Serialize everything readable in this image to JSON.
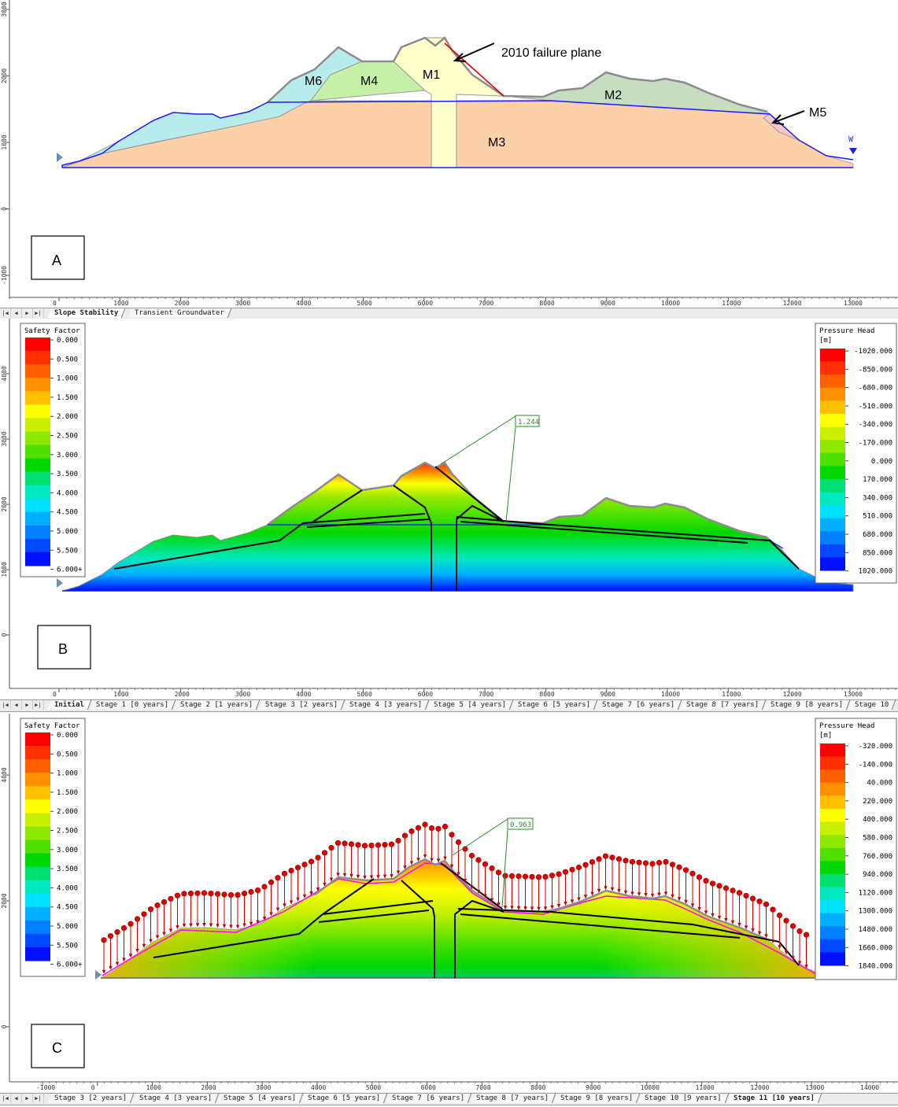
{
  "panels": {
    "a": {
      "label": "A"
    },
    "b": {
      "label": "B",
      "fs_value": "1.244"
    },
    "c": {
      "label": "C",
      "fs_value": "0.963"
    }
  },
  "annotations": {
    "failure_plane": "2010 failure plane",
    "materials": [
      "M1",
      "M2",
      "M3",
      "M4",
      "M5",
      "M6"
    ],
    "water_marker": "W"
  },
  "axes": {
    "a_x": [
      "0",
      "1000",
      "2000",
      "3000",
      "4000",
      "5000",
      "6000",
      "7000",
      "8000",
      "9000",
      "10000",
      "11000",
      "12000",
      "13000"
    ],
    "a_y": [
      "3000",
      "2000",
      "1000",
      "0",
      "-1000"
    ],
    "b_x": [
      "0",
      "1000",
      "2000",
      "3000",
      "4000",
      "5000",
      "6000",
      "7000",
      "8000",
      "9000",
      "10000",
      "11000",
      "12000",
      "13000"
    ],
    "b_y": [
      "4000",
      "3000",
      "2000",
      "1000",
      "0"
    ],
    "c_x": [
      "-1000",
      "0",
      "1000",
      "2000",
      "3000",
      "4000",
      "5000",
      "6000",
      "7000",
      "8000",
      "9000",
      "10000",
      "11000",
      "12000",
      "13000",
      "14000"
    ],
    "c_y": [
      "4000",
      "2000",
      "0"
    ]
  },
  "safety_factor_legend": {
    "title": "Safety Factor",
    "labels": [
      "0.000",
      "0.500",
      "1.000",
      "1.500",
      "2.000",
      "2.500",
      "3.000",
      "3.500",
      "4.000",
      "4.500",
      "5.000",
      "5.500",
      "6.000+"
    ],
    "colors": [
      "#ff0000",
      "#ff3000",
      "#ff6000",
      "#ff9000",
      "#ffc000",
      "#ffff00",
      "#c8f000",
      "#90e800",
      "#50e000",
      "#00d800",
      "#00e070",
      "#00e8c0",
      "#00e0ff",
      "#00b0ff",
      "#0080ff",
      "#0048ff",
      "#0010ff"
    ]
  },
  "pressure_head_b": {
    "title": "Pressure Head",
    "unit": "[m]",
    "labels": [
      "-1020.000",
      "-850.000",
      "-680.000",
      "-510.000",
      "-340.000",
      "-170.000",
      "0.000",
      "170.000",
      "340.000",
      "510.000",
      "680.000",
      "850.000",
      "1020.000"
    ]
  },
  "pressure_head_c": {
    "title": "Pressure Head",
    "unit": "[m]",
    "labels": [
      "-320.000",
      "-140.000",
      "40.000",
      "220.000",
      "400.000",
      "580.000",
      "760.000",
      "940.000",
      "1120.000",
      "1300.000",
      "1480.000",
      "1660.000",
      "1840.000"
    ]
  },
  "tabs_a": [
    "Slope Stability",
    "Transient Groundwater"
  ],
  "tabs_b": [
    "Initial",
    "Stage 1 [0 years]",
    "Stage 2 [1 years]",
    "Stage 3 [2 years]",
    "Stage 4 [3 years]",
    "Stage 5 [4 years]",
    "Stage 6 [5 years]",
    "Stage 7 [6 years]",
    "Stage 8 [7 years]",
    "Stage 9 [8 years]",
    "Stage 10"
  ],
  "tabs_c": [
    "Stage 3 [2 years]",
    "Stage 4 [3 years]",
    "Stage 5 [4 years]",
    "Stage 6 [5 years]",
    "Stage 7 [6 years]",
    "Stage 8 [7 years]",
    "Stage 9 [8 years]",
    "Stage 10 [9 years]",
    "Stage 11 [10 years]"
  ],
  "colors": {
    "m1": "#ffffcc",
    "m2": "#c8dcc0",
    "m3": "#fcd0a8",
    "m4": "#c6f0a8",
    "m5": "#f8c8c8",
    "m6": "#b8ecec",
    "boundary": "#1a1aff",
    "failure": "#e00000",
    "slip": "#000000",
    "load": "#e00000"
  }
}
